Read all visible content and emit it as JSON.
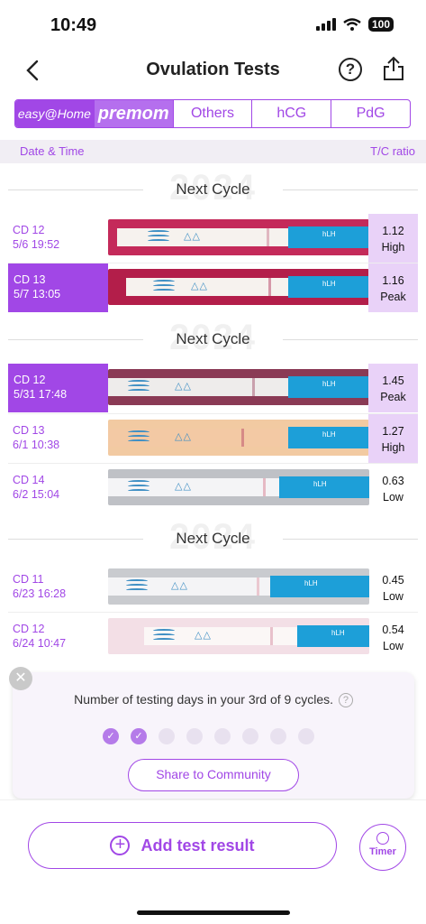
{
  "status_bar": {
    "time": "10:49",
    "battery": "100"
  },
  "header": {
    "title": "Ovulation Tests",
    "help_label": "?"
  },
  "brand_tabs": [
    {
      "label": "easy@Home",
      "active": true
    },
    {
      "label": "premom",
      "active": false
    },
    {
      "label": "Others",
      "active": false
    },
    {
      "label": "hCG",
      "active": false
    },
    {
      "label": "PdG",
      "active": false
    }
  ],
  "columns": {
    "date_time": "Date & Time",
    "tc_ratio": "T/C ratio"
  },
  "cycles": [
    {
      "year": "2024",
      "label": "Next Cycle"
    },
    {
      "year": "2024",
      "label": "Next Cycle"
    },
    {
      "year": "2024",
      "label": "Next Cycle"
    }
  ],
  "tests": [
    {
      "cd": "CD 12",
      "datetime": "5/6 19:52",
      "ratio": "1.12",
      "level": "High",
      "selected": false,
      "highlight": true
    },
    {
      "cd": "CD 13",
      "datetime": "5/7 13:05",
      "ratio": "1.16",
      "level": "Peak",
      "selected": true,
      "highlight": true
    },
    {
      "cd": "CD 12",
      "datetime": "5/31 17:48",
      "ratio": "1.45",
      "level": "Peak",
      "selected": true,
      "highlight": true
    },
    {
      "cd": "CD 13",
      "datetime": "6/1 10:38",
      "ratio": "1.27",
      "level": "High",
      "selected": false,
      "highlight": true
    },
    {
      "cd": "CD 14",
      "datetime": "6/2 15:04",
      "ratio": "0.63",
      "level": "Low",
      "selected": false,
      "highlight": false
    },
    {
      "cd": "CD 11",
      "datetime": "6/23 16:28",
      "ratio": "0.45",
      "level": "Low",
      "selected": false,
      "highlight": false
    },
    {
      "cd": "CD 12",
      "datetime": "6/24 10:47",
      "ratio": "0.54",
      "level": "Low",
      "selected": false,
      "highlight": false
    }
  ],
  "strip_label": "hLH",
  "popup": {
    "text": "Number of testing days in your 3rd of 9 cycles.",
    "help_label": "?",
    "completed_days": 2,
    "total_days": 8,
    "share_button": "Share to Community"
  },
  "bottom": {
    "add_button": "Add test result",
    "timer_button": "Timer"
  },
  "colors": {
    "accent": "#a147e6",
    "highlight": "#e9d2f8",
    "strip_blue": "#1d9fd8"
  }
}
